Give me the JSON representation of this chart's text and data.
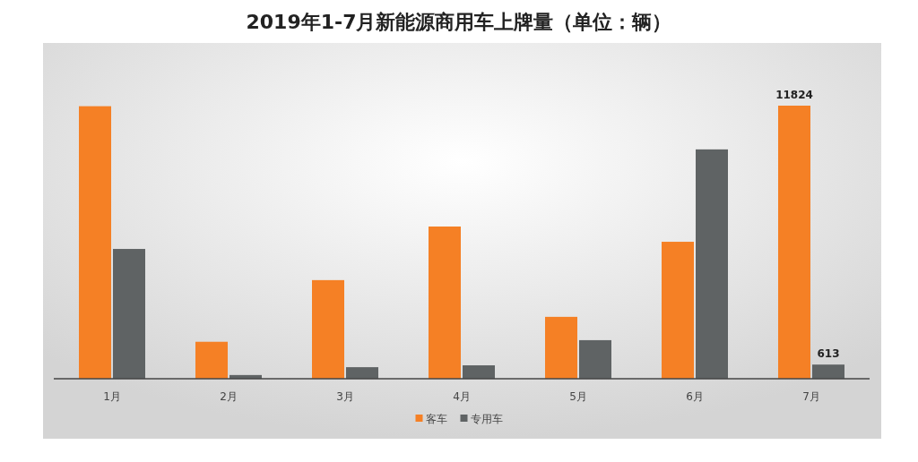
{
  "chart_data": {
    "type": "bar",
    "title": "2019年1-7月新能源商用车上牌量（单位：辆）",
    "categories": [
      "1月",
      "2月",
      "3月",
      "4月",
      "5月",
      "6月",
      "7月"
    ],
    "legend": "bottom",
    "series": [
      {
        "name": "客车",
        "color": "#f58025",
        "values": [
          11800,
          1600,
          4270,
          6590,
          2680,
          5930,
          11824
        ],
        "value_labels": [
          null,
          null,
          null,
          null,
          null,
          null,
          "11824"
        ]
      },
      {
        "name": "专用车",
        "color": "#5f6364",
        "values": [
          5620,
          160,
          500,
          580,
          1670,
          9930,
          613
        ],
        "value_labels": [
          null,
          null,
          null,
          null,
          null,
          null,
          "613"
        ]
      }
    ]
  }
}
